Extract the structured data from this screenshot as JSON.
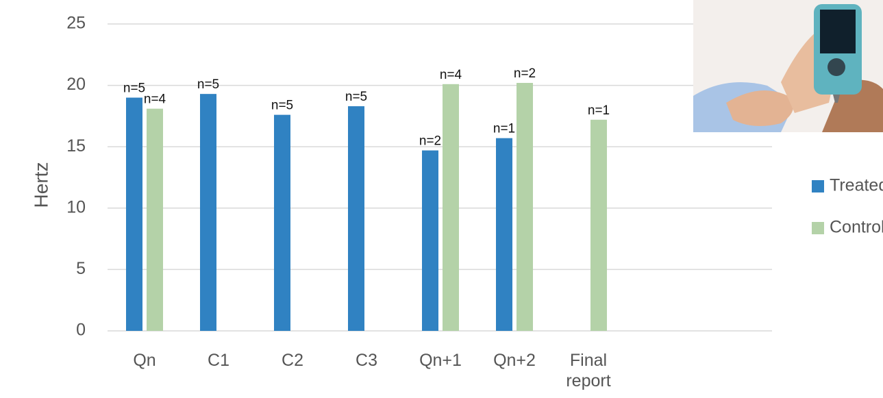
{
  "chart_data": {
    "type": "bar",
    "y_label": "Hertz",
    "categories": [
      "Qn",
      "C1",
      "C2",
      "C3",
      "Qn+1",
      "Qn+2",
      "Final report"
    ],
    "series": [
      {
        "name": "Treated",
        "color": "#3082c2",
        "values": [
          19.0,
          19.3,
          17.6,
          18.3,
          14.7,
          15.7,
          null
        ],
        "labels": [
          "n=5",
          "n=5",
          "n=5",
          "n=5",
          "n=2",
          "n=1",
          null
        ]
      },
      {
        "name": "Control",
        "color": "#b4d2a8",
        "values": [
          18.1,
          null,
          null,
          null,
          20.1,
          20.2,
          17.2
        ],
        "labels": [
          "n=4",
          null,
          null,
          null,
          "n=4",
          "n=2",
          "n=1"
        ]
      }
    ],
    "ylim": [
      0,
      25
    ],
    "yticks": [
      0,
      5,
      10,
      15,
      20,
      25
    ],
    "grid": true
  }
}
